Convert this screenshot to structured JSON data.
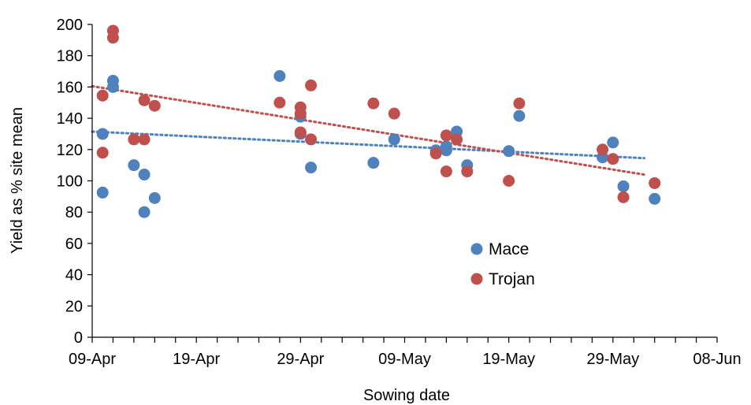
{
  "chart_data": {
    "type": "scatter",
    "xlabel": "Sowing date",
    "ylabel": "Yield as % site mean",
    "xlim": [
      "2021-04-09",
      "2021-06-08"
    ],
    "ylim": [
      0,
      200
    ],
    "x_ticks": [
      "09-Apr",
      "19-Apr",
      "29-Apr",
      "09-May",
      "19-May",
      "29-May",
      "08-Jun"
    ],
    "x_tick_dates": [
      "2021-04-09",
      "2021-04-19",
      "2021-04-29",
      "2021-05-09",
      "2021-05-19",
      "2021-05-29",
      "2021-06-08"
    ],
    "y_ticks": [
      0,
      20,
      40,
      60,
      80,
      100,
      120,
      140,
      160,
      180,
      200
    ],
    "legend": {
      "position": "inside-lower-right"
    },
    "series": [
      {
        "name": "Mace",
        "color": "#4f81bd",
        "trendline": {
          "type": "linear",
          "from": [
            "2021-04-09",
            131.5
          ],
          "to": [
            "2021-06-01",
            114.5
          ],
          "style": "dotted"
        },
        "points": [
          [
            "2021-04-10",
            130
          ],
          [
            "2021-04-10",
            92.5
          ],
          [
            "2021-04-11",
            164
          ],
          [
            "2021-04-11",
            160
          ],
          [
            "2021-04-13",
            110
          ],
          [
            "2021-04-14",
            104
          ],
          [
            "2021-04-14",
            80
          ],
          [
            "2021-04-15",
            89
          ],
          [
            "2021-04-27",
            167
          ],
          [
            "2021-04-29",
            141
          ],
          [
            "2021-04-29",
            130
          ],
          [
            "2021-04-30",
            108.5
          ],
          [
            "2021-05-06",
            111.5
          ],
          [
            "2021-05-08",
            126.5
          ],
          [
            "2021-05-12",
            119.5
          ],
          [
            "2021-05-13",
            122
          ],
          [
            "2021-05-13",
            119.5
          ],
          [
            "2021-05-14",
            131.5
          ],
          [
            "2021-05-15",
            110
          ],
          [
            "2021-05-19",
            119
          ],
          [
            "2021-05-20",
            141.5
          ],
          [
            "2021-05-28",
            115
          ],
          [
            "2021-05-29",
            124.5
          ],
          [
            "2021-05-30",
            96.5
          ],
          [
            "2021-06-02",
            88.5
          ]
        ]
      },
      {
        "name": "Trojan",
        "color": "#c0504d",
        "trendline": {
          "type": "linear",
          "from": [
            "2021-04-09",
            160.5
          ],
          "to": [
            "2021-06-01",
            104
          ],
          "style": "dotted"
        },
        "points": [
          [
            "2021-04-10",
            154.5
          ],
          [
            "2021-04-10",
            118
          ],
          [
            "2021-04-11",
            196
          ],
          [
            "2021-04-11",
            191.5
          ],
          [
            "2021-04-13",
            126.5
          ],
          [
            "2021-04-14",
            151.5
          ],
          [
            "2021-04-14",
            126.5
          ],
          [
            "2021-04-15",
            148
          ],
          [
            "2021-04-27",
            150
          ],
          [
            "2021-04-29",
            147
          ],
          [
            "2021-04-29",
            143
          ],
          [
            "2021-04-29",
            131
          ],
          [
            "2021-04-30",
            161
          ],
          [
            "2021-04-30",
            126.5
          ],
          [
            "2021-05-06",
            149.5
          ],
          [
            "2021-05-08",
            143
          ],
          [
            "2021-05-12",
            117.5
          ],
          [
            "2021-05-13",
            129
          ],
          [
            "2021-05-13",
            106
          ],
          [
            "2021-05-14",
            126.5
          ],
          [
            "2021-05-15",
            106
          ],
          [
            "2021-05-19",
            100
          ],
          [
            "2021-05-20",
            149.5
          ],
          [
            "2021-05-28",
            120
          ],
          [
            "2021-05-29",
            114
          ],
          [
            "2021-05-30",
            89.5
          ],
          [
            "2021-06-02",
            98.5
          ]
        ]
      }
    ]
  }
}
